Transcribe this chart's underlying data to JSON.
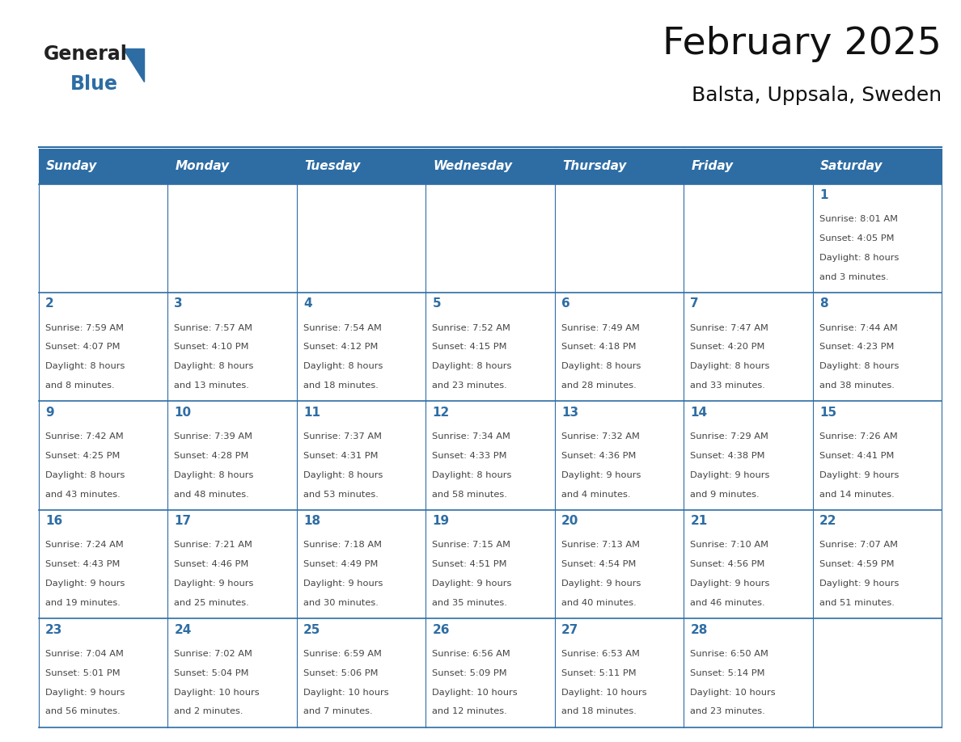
{
  "title": "February 2025",
  "subtitle": "Balsta, Uppsala, Sweden",
  "header_bg": "#2E6DA4",
  "header_text_color": "#FFFFFF",
  "cell_bg": "#FFFFFF",
  "cell_border_color": "#2E6DA4",
  "day_number_color": "#2E6DA4",
  "cell_text_color": "#444444",
  "bg_color": "#FFFFFF",
  "days_of_week": [
    "Sunday",
    "Monday",
    "Tuesday",
    "Wednesday",
    "Thursday",
    "Friday",
    "Saturday"
  ],
  "logo_general_color": "#222222",
  "logo_blue_color": "#2E6DA4",
  "calendar_data": [
    [
      null,
      null,
      null,
      null,
      null,
      null,
      {
        "day": 1,
        "sunrise": "8:01 AM",
        "sunset": "4:05 PM",
        "daylight_line1": "8 hours",
        "daylight_line2": "and 3 minutes."
      }
    ],
    [
      {
        "day": 2,
        "sunrise": "7:59 AM",
        "sunset": "4:07 PM",
        "daylight_line1": "8 hours",
        "daylight_line2": "and 8 minutes."
      },
      {
        "day": 3,
        "sunrise": "7:57 AM",
        "sunset": "4:10 PM",
        "daylight_line1": "8 hours",
        "daylight_line2": "and 13 minutes."
      },
      {
        "day": 4,
        "sunrise": "7:54 AM",
        "sunset": "4:12 PM",
        "daylight_line1": "8 hours",
        "daylight_line2": "and 18 minutes."
      },
      {
        "day": 5,
        "sunrise": "7:52 AM",
        "sunset": "4:15 PM",
        "daylight_line1": "8 hours",
        "daylight_line2": "and 23 minutes."
      },
      {
        "day": 6,
        "sunrise": "7:49 AM",
        "sunset": "4:18 PM",
        "daylight_line1": "8 hours",
        "daylight_line2": "and 28 minutes."
      },
      {
        "day": 7,
        "sunrise": "7:47 AM",
        "sunset": "4:20 PM",
        "daylight_line1": "8 hours",
        "daylight_line2": "and 33 minutes."
      },
      {
        "day": 8,
        "sunrise": "7:44 AM",
        "sunset": "4:23 PM",
        "daylight_line1": "8 hours",
        "daylight_line2": "and 38 minutes."
      }
    ],
    [
      {
        "day": 9,
        "sunrise": "7:42 AM",
        "sunset": "4:25 PM",
        "daylight_line1": "8 hours",
        "daylight_line2": "and 43 minutes."
      },
      {
        "day": 10,
        "sunrise": "7:39 AM",
        "sunset": "4:28 PM",
        "daylight_line1": "8 hours",
        "daylight_line2": "and 48 minutes."
      },
      {
        "day": 11,
        "sunrise": "7:37 AM",
        "sunset": "4:31 PM",
        "daylight_line1": "8 hours",
        "daylight_line2": "and 53 minutes."
      },
      {
        "day": 12,
        "sunrise": "7:34 AM",
        "sunset": "4:33 PM",
        "daylight_line1": "8 hours",
        "daylight_line2": "and 58 minutes."
      },
      {
        "day": 13,
        "sunrise": "7:32 AM",
        "sunset": "4:36 PM",
        "daylight_line1": "9 hours",
        "daylight_line2": "and 4 minutes."
      },
      {
        "day": 14,
        "sunrise": "7:29 AM",
        "sunset": "4:38 PM",
        "daylight_line1": "9 hours",
        "daylight_line2": "and 9 minutes."
      },
      {
        "day": 15,
        "sunrise": "7:26 AM",
        "sunset": "4:41 PM",
        "daylight_line1": "9 hours",
        "daylight_line2": "and 14 minutes."
      }
    ],
    [
      {
        "day": 16,
        "sunrise": "7:24 AM",
        "sunset": "4:43 PM",
        "daylight_line1": "9 hours",
        "daylight_line2": "and 19 minutes."
      },
      {
        "day": 17,
        "sunrise": "7:21 AM",
        "sunset": "4:46 PM",
        "daylight_line1": "9 hours",
        "daylight_line2": "and 25 minutes."
      },
      {
        "day": 18,
        "sunrise": "7:18 AM",
        "sunset": "4:49 PM",
        "daylight_line1": "9 hours",
        "daylight_line2": "and 30 minutes."
      },
      {
        "day": 19,
        "sunrise": "7:15 AM",
        "sunset": "4:51 PM",
        "daylight_line1": "9 hours",
        "daylight_line2": "and 35 minutes."
      },
      {
        "day": 20,
        "sunrise": "7:13 AM",
        "sunset": "4:54 PM",
        "daylight_line1": "9 hours",
        "daylight_line2": "and 40 minutes."
      },
      {
        "day": 21,
        "sunrise": "7:10 AM",
        "sunset": "4:56 PM",
        "daylight_line1": "9 hours",
        "daylight_line2": "and 46 minutes."
      },
      {
        "day": 22,
        "sunrise": "7:07 AM",
        "sunset": "4:59 PM",
        "daylight_line1": "9 hours",
        "daylight_line2": "and 51 minutes."
      }
    ],
    [
      {
        "day": 23,
        "sunrise": "7:04 AM",
        "sunset": "5:01 PM",
        "daylight_line1": "9 hours",
        "daylight_line2": "and 56 minutes."
      },
      {
        "day": 24,
        "sunrise": "7:02 AM",
        "sunset": "5:04 PM",
        "daylight_line1": "10 hours",
        "daylight_line2": "and 2 minutes."
      },
      {
        "day": 25,
        "sunrise": "6:59 AM",
        "sunset": "5:06 PM",
        "daylight_line1": "10 hours",
        "daylight_line2": "and 7 minutes."
      },
      {
        "day": 26,
        "sunrise": "6:56 AM",
        "sunset": "5:09 PM",
        "daylight_line1": "10 hours",
        "daylight_line2": "and 12 minutes."
      },
      {
        "day": 27,
        "sunrise": "6:53 AM",
        "sunset": "5:11 PM",
        "daylight_line1": "10 hours",
        "daylight_line2": "and 18 minutes."
      },
      {
        "day": 28,
        "sunrise": "6:50 AM",
        "sunset": "5:14 PM",
        "daylight_line1": "10 hours",
        "daylight_line2": "and 23 minutes."
      },
      null
    ]
  ]
}
